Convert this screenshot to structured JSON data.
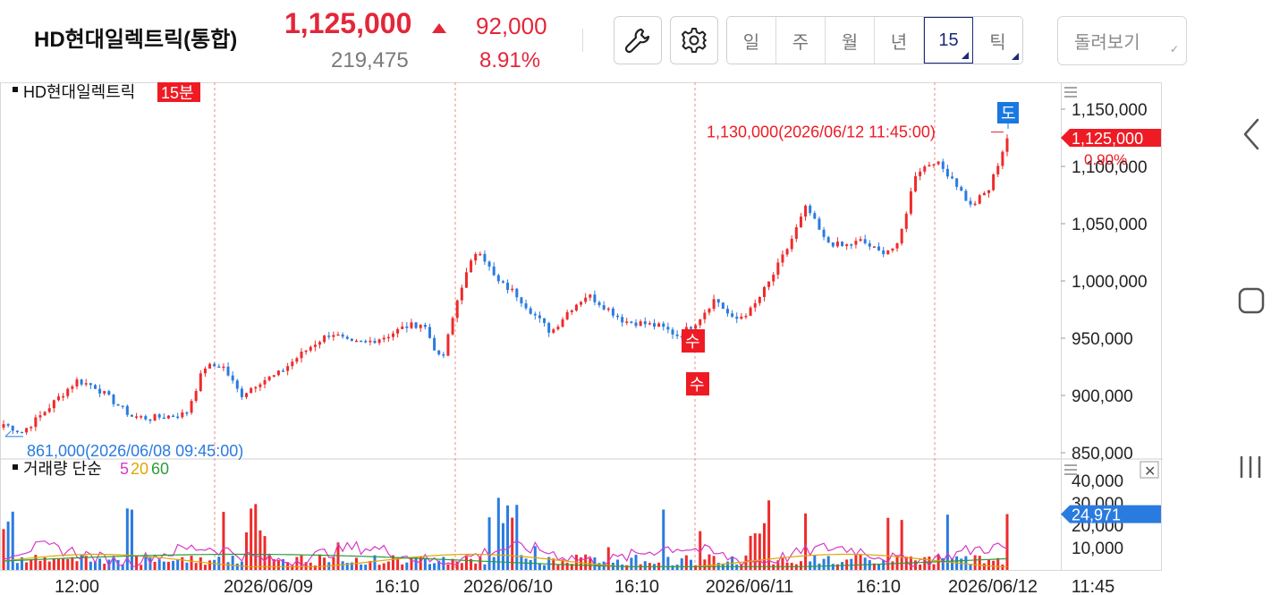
{
  "header": {
    "stock_name": "HD현대일렉트릭(통합)",
    "price": "1,125,000",
    "change": "92,000",
    "volume": "219,475",
    "change_pct": "8.91%",
    "periods": [
      "일",
      "주",
      "월",
      "년",
      "15",
      "틱"
    ],
    "active_period": "15",
    "replay_label": "돌려보기",
    "up_color": "#e3263a",
    "accent_color": "#1b2a7a"
  },
  "chart": {
    "legend_name": "HD현대일렉트릭",
    "legend_interval": "15분",
    "max_label": "1,130,000(2026/06/12 11:45:00)",
    "min_label": "861,000(2026/06/08 09:45:00)",
    "current_price_tag": "1,125,000",
    "current_pct": "0.90%",
    "sell_marker": "도",
    "buy_marker": "수",
    "price_axis": [
      "1,150,000",
      "1,100,000",
      "1,050,000",
      "1,000,000",
      "950,000",
      "900,000",
      "850,000"
    ],
    "volume_legend": "거래량 단순",
    "ma_labels": [
      "5",
      "20",
      "60"
    ],
    "ma_colors": [
      "#d63ac8",
      "#e0a800",
      "#2a9d3a"
    ],
    "volume_axis": [
      "40,000",
      "30,000",
      "20,000",
      "10,000"
    ],
    "volume_tag": "24,971",
    "time_axis": [
      "12:00",
      "2026/06/09",
      "16:10",
      "2026/06/10",
      "16:10",
      "2026/06/11",
      "16:10",
      "2026/06/12",
      "11:45"
    ],
    "up_color": "#ee2b2b",
    "down_color": "#2a7be0"
  },
  "chart_data": {
    "type": "candlestick",
    "title": "HD현대일렉트릭 15분",
    "ylim": [
      850000,
      1150000
    ],
    "volume_ylim": [
      0,
      40000
    ],
    "x_labels": [
      "12:00",
      "2026/06/09",
      "16:10",
      "2026/06/10",
      "16:10",
      "2026/06/11",
      "16:10",
      "2026/06/12",
      "11:45"
    ],
    "close_path": [
      875000,
      868000,
      882000,
      898000,
      913000,
      908000,
      895000,
      882000,
      880000,
      882000,
      884000,
      925000,
      926000,
      900000,
      912000,
      918000,
      932000,
      945000,
      955000,
      945000,
      947000,
      952000,
      960000,
      963000,
      928000,
      992000,
      1030000,
      1000000,
      990000,
      972000,
      955000,
      975000,
      988000,
      977000,
      965000,
      963000,
      960000,
      952000,
      965000,
      985000,
      965000,
      975000,
      1000000,
      1030000,
      1065000,
      1035000,
      1030000,
      1035000,
      1025000,
      1030000,
      1095000,
      1105000,
      1090000,
      1065000,
      1080000,
      1125000
    ],
    "max": {
      "value": 1130000,
      "time": "2026/06/12 11:45:00"
    },
    "min": {
      "value": 861000,
      "time": "2026/06/08 09:45:00"
    },
    "last": 1125000,
    "last_volume": 24971
  }
}
